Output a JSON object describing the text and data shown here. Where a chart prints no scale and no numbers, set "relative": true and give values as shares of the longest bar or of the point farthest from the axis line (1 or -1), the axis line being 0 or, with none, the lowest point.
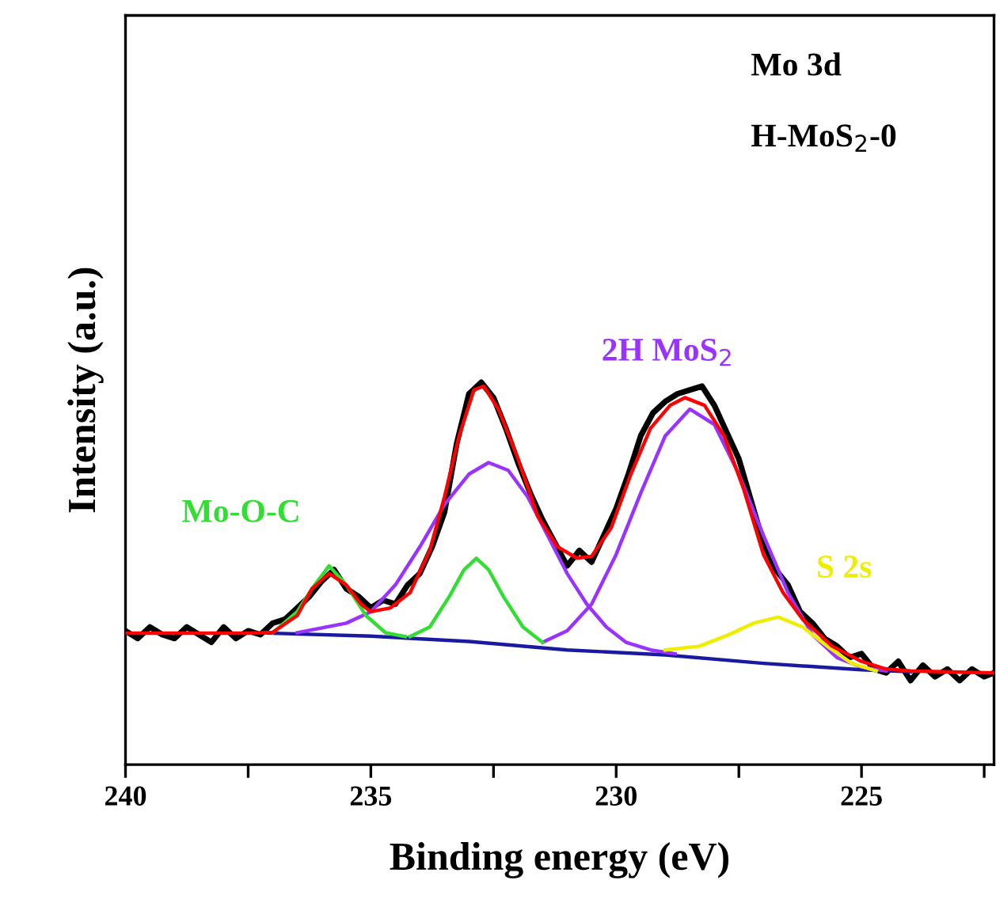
{
  "chart_data": {
    "type": "line",
    "relative": true,
    "xlabel": "Binding energy (eV)",
    "ylabel": "Intensity (a.u.)",
    "xlim": [
      240,
      222.3
    ],
    "xticks": [
      240,
      {
        "value": 237.5,
        "label": null
      },
      235,
      {
        "value": 232.5,
        "label": null
      },
      230,
      {
        "value": 227.5,
        "label": null
      },
      225,
      {
        "value": 222.5,
        "label": null
      }
    ],
    "tick_labels": "x",
    "grid": false,
    "legend": false,
    "marker": "none",
    "line_style": "solid",
    "annotations": [
      "Mo 3d",
      "H-MoS$_{2}$-0"
    ],
    "series": [
      {
        "color": "#000000",
        "x": [
          240,
          239.75,
          239.5,
          239.25,
          239,
          238.75,
          238.5,
          238.25,
          238,
          237.75,
          237.5,
          237.25,
          237,
          236.75,
          236.5,
          236.25,
          236,
          235.75,
          235.5,
          235.25,
          235,
          234.75,
          234.5,
          234.25,
          234,
          233.75,
          233.5,
          233.25,
          233,
          232.75,
          232.5,
          232.25,
          232,
          231.75,
          231.5,
          231.25,
          231,
          230.75,
          230.5,
          230.25,
          230,
          229.75,
          229.5,
          229.25,
          229,
          228.75,
          228.5,
          228.25,
          228,
          227.75,
          227.5,
          227.25,
          227,
          226.75,
          226.5,
          226.25,
          226,
          225.75,
          225.5,
          225.25,
          225,
          224.75,
          224.5,
          224.25,
          224,
          223.75,
          223.5,
          223.25,
          223,
          222.75,
          222.5,
          222.3
        ],
        "values": [
          0.35,
          0.33,
          0.36,
          0.34,
          0.33,
          0.36,
          0.34,
          0.32,
          0.36,
          0.33,
          0.35,
          0.34,
          0.37,
          0.38,
          0.41,
          0.44,
          0.48,
          0.51,
          0.46,
          0.44,
          0.41,
          0.43,
          0.42,
          0.47,
          0.5,
          0.57,
          0.66,
          0.84,
          0.97,
          1.0,
          0.96,
          0.88,
          0.79,
          0.71,
          0.64,
          0.58,
          0.52,
          0.56,
          0.53,
          0.6,
          0.67,
          0.76,
          0.86,
          0.92,
          0.95,
          0.97,
          0.98,
          0.99,
          0.94,
          0.87,
          0.8,
          0.69,
          0.58,
          0.51,
          0.47,
          0.4,
          0.37,
          0.33,
          0.31,
          0.28,
          0.29,
          0.25,
          0.24,
          0.27,
          0.22,
          0.26,
          0.23,
          0.25,
          0.22,
          0.25,
          0.23,
          0.24
        ]
      },
      {
        "color": "#1a1aa0",
        "x": [
          237.1,
          235,
          233,
          231,
          229,
          227,
          225,
          224
        ],
        "values": [
          0.344,
          0.336,
          0.322,
          0.3,
          0.287,
          0.265,
          0.248,
          0.243
        ]
      },
      {
        "color": "#9933ff",
        "x": [
          236.5,
          235.5,
          235,
          234.5,
          234,
          233.5,
          233,
          232.6,
          232.2,
          231.8,
          231.4,
          231,
          230.6,
          230.2,
          229.8,
          229.3,
          228.8
        ],
        "values": [
          0.345,
          0.37,
          0.4,
          0.47,
          0.57,
          0.68,
          0.76,
          0.79,
          0.77,
          0.7,
          0.6,
          0.5,
          0.42,
          0.36,
          0.32,
          0.3,
          0.29
        ]
      },
      {
        "name": "2H MoS$_{2}$",
        "color": "#9933ff",
        "x": [
          231.5,
          231,
          230.5,
          230,
          229.5,
          229,
          228.5,
          228,
          227.5,
          227,
          226.5,
          226,
          225.5,
          225,
          224.5
        ],
        "values": [
          0.32,
          0.35,
          0.42,
          0.55,
          0.71,
          0.86,
          0.93,
          0.89,
          0.76,
          0.6,
          0.45,
          0.34,
          0.28,
          0.255,
          0.245
        ]
      },
      {
        "name": "Mo-O-C",
        "color": "#33dd33",
        "x": [
          237,
          236.5,
          236.2,
          235.85,
          235.5,
          235.1,
          234.7,
          234.3
        ],
        "values": [
          0.345,
          0.4,
          0.46,
          0.52,
          0.47,
          0.39,
          0.345,
          0.335
        ]
      },
      {
        "color": "#33dd33",
        "x": [
          234.2,
          233.8,
          233.4,
          233.1,
          232.85,
          232.6,
          232.3,
          231.9,
          231.5
        ],
        "values": [
          0.335,
          0.36,
          0.44,
          0.51,
          0.54,
          0.51,
          0.44,
          0.36,
          0.32
        ]
      },
      {
        "name": "S 2s",
        "color": "#eeee00",
        "x": [
          229,
          228.3,
          227.7,
          227.2,
          226.7,
          226.2,
          225.7,
          225.2,
          224.7
        ],
        "values": [
          0.3,
          0.31,
          0.34,
          0.37,
          0.386,
          0.36,
          0.31,
          0.265,
          0.245
        ]
      },
      {
        "color": "#ff0000",
        "x": [
          240,
          237.5,
          237,
          236.5,
          236.2,
          235.85,
          235.5,
          235.2,
          235,
          234.6,
          234.2,
          233.8,
          233.5,
          233.2,
          232.9,
          232.7,
          232.4,
          232,
          231.6,
          231.2,
          230.8,
          230.5,
          230.1,
          229.7,
          229.3,
          228.9,
          228.6,
          228.2,
          227.8,
          227.4,
          227,
          226.6,
          226.2,
          225.6,
          225,
          224.5,
          224,
          222.3
        ],
        "values": [
          0.344,
          0.344,
          0.346,
          0.39,
          0.46,
          0.5,
          0.47,
          0.42,
          0.4,
          0.41,
          0.45,
          0.56,
          0.7,
          0.86,
          0.98,
          0.99,
          0.93,
          0.8,
          0.65,
          0.57,
          0.54,
          0.545,
          0.62,
          0.76,
          0.88,
          0.94,
          0.96,
          0.94,
          0.86,
          0.72,
          0.55,
          0.45,
          0.38,
          0.31,
          0.27,
          0.25,
          0.245,
          0.24
        ]
      }
    ]
  }
}
